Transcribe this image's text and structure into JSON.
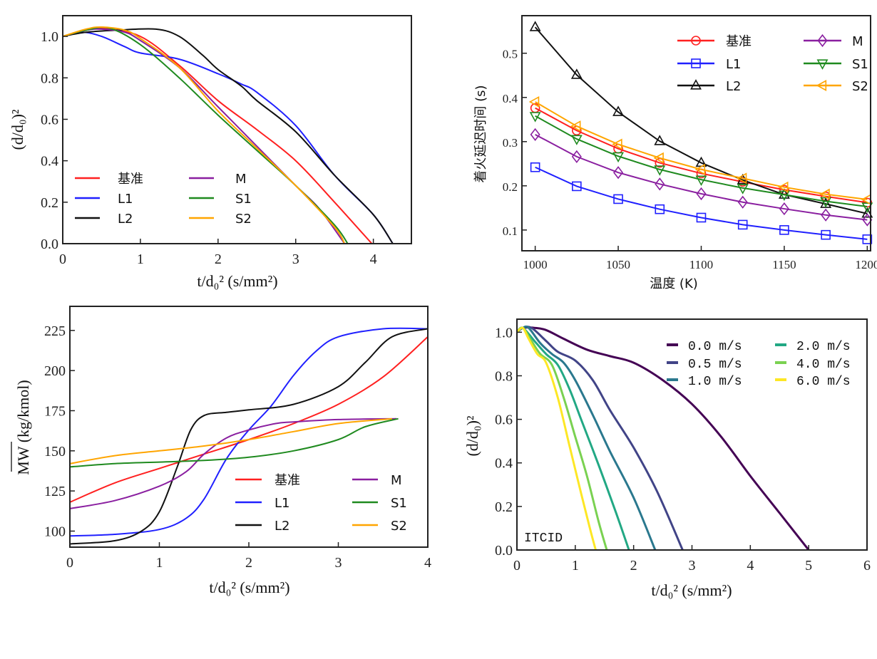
{
  "chart_data": [
    {
      "type": "line",
      "title": "",
      "xlabel": "t/d₀² (s/mm²)",
      "ylabel": "(d/d₀)²",
      "xlim": [
        0,
        4.49
      ],
      "ylim": [
        0,
        1.1
      ],
      "xticks": [
        "0",
        "1",
        "2",
        "3",
        "4"
      ],
      "xtick_values": [
        0,
        1,
        2,
        3,
        4
      ],
      "yticks": [
        "0.0",
        "0.2",
        "0.4",
        "0.6",
        "0.8",
        "1.0"
      ],
      "ytick_values": [
        0,
        0.2,
        0.4,
        0.6,
        0.8,
        1.0
      ],
      "grid": false,
      "legend_placement": "lower-left",
      "series": [
        {
          "name": "基准",
          "color": "#ff2020",
          "x": [
            0,
            0.3,
            0.5,
            1,
            1.5,
            2,
            2.5,
            3,
            3.5,
            3.98
          ],
          "y": [
            1,
            1.03,
            1.04,
            1.0,
            0.86,
            0.69,
            0.55,
            0.4,
            0.2,
            0
          ]
        },
        {
          "name": "L1",
          "color": "#2020ff",
          "x": [
            0,
            0.25,
            0.5,
            0.8,
            1,
            1.5,
            2,
            2.3,
            2.5,
            3,
            3.5,
            4,
            4.25
          ],
          "y": [
            1,
            1.02,
            1.0,
            0.95,
            0.92,
            0.89,
            0.82,
            0.77,
            0.73,
            0.57,
            0.33,
            0.14,
            0
          ]
        },
        {
          "name": "L2",
          "color": "#111111",
          "x": [
            0,
            0.3,
            0.7,
            1.2,
            1.5,
            1.8,
            2,
            2.3,
            2.5,
            3,
            3.5,
            4,
            4.25
          ],
          "y": [
            1,
            1.02,
            1.03,
            1.035,
            1.0,
            0.91,
            0.84,
            0.76,
            0.69,
            0.54,
            0.33,
            0.14,
            0
          ]
        },
        {
          "name": "M",
          "color": "#8a1fa0",
          "x": [
            0,
            0.3,
            0.5,
            0.8,
            1,
            1.5,
            2,
            2.5,
            3,
            3.3,
            3.63
          ],
          "y": [
            1,
            1.03,
            1.035,
            1.02,
            0.98,
            0.85,
            0.66,
            0.47,
            0.28,
            0.17,
            0
          ]
        },
        {
          "name": "S1",
          "color": "#1f8a1f",
          "x": [
            0,
            0.3,
            0.6,
            1,
            1.5,
            2,
            2.5,
            3,
            3.5,
            3.67
          ],
          "y": [
            1,
            1.03,
            1.04,
            0.96,
            0.8,
            0.62,
            0.45,
            0.28,
            0.09,
            0
          ]
        },
        {
          "name": "S2",
          "color": "#ffa500",
          "x": [
            0,
            0.3,
            0.5,
            0.8,
            1,
            1.5,
            2,
            2.5,
            3,
            3.5,
            3.63
          ],
          "y": [
            1,
            1.035,
            1.045,
            1.03,
            0.99,
            0.85,
            0.64,
            0.46,
            0.28,
            0.08,
            0
          ]
        }
      ]
    },
    {
      "type": "line",
      "title": "",
      "xlabel": "温度 (K)",
      "ylabel": "着火延迟时间 (s)",
      "xlim": [
        992,
        1202
      ],
      "ylim": [
        0.053,
        0.585
      ],
      "xticks": [
        "1000",
        "1050",
        "1100",
        "1150",
        "1200"
      ],
      "xtick_values": [
        1000,
        1050,
        1100,
        1150,
        1200
      ],
      "yticks": [
        "0.1",
        "0.2",
        "0.3",
        "0.4",
        "0.5"
      ],
      "ytick_values": [
        0.1,
        0.2,
        0.3,
        0.4,
        0.5
      ],
      "grid": false,
      "legend_placement": "upper-right",
      "x": [
        1000,
        1025,
        1050,
        1075,
        1100,
        1125,
        1150,
        1175,
        1200
      ],
      "series": [
        {
          "name": "基准",
          "color": "#ff2020",
          "marker": "circle",
          "y": [
            0.376,
            0.325,
            0.284,
            0.252,
            0.228,
            0.209,
            0.191,
            0.176,
            0.162
          ]
        },
        {
          "name": "L1",
          "color": "#2020ff",
          "marker": "square",
          "y": [
            0.242,
            0.199,
            0.17,
            0.147,
            0.128,
            0.112,
            0.1,
            0.089,
            0.079
          ]
        },
        {
          "name": "L2",
          "color": "#111111",
          "marker": "triangle-up",
          "y": [
            0.559,
            0.451,
            0.367,
            0.301,
            0.252,
            0.213,
            0.18,
            0.159,
            0.137
          ]
        },
        {
          "name": "M",
          "color": "#8a1fa0",
          "marker": "diamond",
          "y": [
            0.316,
            0.266,
            0.23,
            0.204,
            0.182,
            0.163,
            0.148,
            0.134,
            0.123
          ]
        },
        {
          "name": "S1",
          "color": "#1f8a1f",
          "marker": "triangle-down",
          "y": [
            0.358,
            0.306,
            0.267,
            0.237,
            0.214,
            0.195,
            0.18,
            0.165,
            0.153
          ]
        },
        {
          "name": "S2",
          "color": "#ffa500",
          "marker": "triangle-left",
          "y": [
            0.39,
            0.335,
            0.294,
            0.263,
            0.237,
            0.217,
            0.197,
            0.181,
            0.169
          ]
        }
      ]
    },
    {
      "type": "line",
      "title": "",
      "xlabel": "t/d₀² (s/mm²)",
      "ylabel": "MW (kg/kmol)",
      "xlim": [
        0,
        4
      ],
      "ylim": [
        90,
        240
      ],
      "xticks": [
        "0",
        "1",
        "2",
        "3",
        "4"
      ],
      "xtick_values": [
        0,
        1,
        2,
        3,
        4
      ],
      "yticks": [
        "100",
        "125",
        "150",
        "175",
        "200",
        "225"
      ],
      "ytick_values": [
        100,
        125,
        150,
        175,
        200,
        225
      ],
      "grid": false,
      "legend_placement": "lower-right",
      "series": [
        {
          "name": "基准",
          "color": "#ff2020",
          "x": [
            0,
            0.5,
            1,
            1.5,
            2,
            2.5,
            3,
            3.5,
            4
          ],
          "y": [
            118,
            130,
            139,
            148,
            157,
            167,
            179,
            196,
            221
          ]
        },
        {
          "name": "L1",
          "color": "#2020ff",
          "x": [
            0,
            0.5,
            1,
            1.3,
            1.5,
            1.75,
            2,
            2.25,
            2.5,
            2.75,
            3,
            3.5,
            4
          ],
          "y": [
            97,
            98,
            101,
            108,
            120,
            145,
            163,
            178,
            197,
            212,
            221,
            226,
            226
          ]
        },
        {
          "name": "L2",
          "color": "#111111",
          "x": [
            0,
            0.5,
            0.8,
            1,
            1.2,
            1.35,
            1.5,
            1.75,
            2,
            2.5,
            3,
            3.3,
            3.6,
            4
          ],
          "y": [
            92,
            94,
            100,
            112,
            140,
            163,
            172,
            174,
            175.5,
            179,
            190,
            205,
            221,
            226
          ]
        },
        {
          "name": "M",
          "color": "#8a1fa0",
          "x": [
            0,
            0.5,
            1,
            1.3,
            1.5,
            1.75,
            2,
            2.3,
            2.5,
            3,
            3.65
          ],
          "y": [
            114,
            119,
            128,
            137,
            148,
            158,
            163,
            167,
            168,
            169.5,
            170
          ]
        },
        {
          "name": "S1",
          "color": "#1f8a1f",
          "x": [
            0,
            0.5,
            1,
            1.5,
            2,
            2.5,
            3,
            3.3,
            3.67
          ],
          "y": [
            140,
            142,
            143,
            144,
            146,
            150,
            157,
            165,
            170
          ]
        },
        {
          "name": "S2",
          "color": "#ffa500",
          "x": [
            0,
            0.5,
            1,
            1.5,
            2,
            2.5,
            3,
            3.6
          ],
          "y": [
            142,
            147,
            150,
            153,
            157,
            162,
            167,
            170
          ]
        }
      ]
    },
    {
      "type": "line",
      "title": "",
      "xlabel": "t/d₀² (s/mm²)",
      "ylabel": "(d/d₀)²",
      "annotation": "ITCID",
      "xlim": [
        0,
        6
      ],
      "ylim": [
        0,
        1.06
      ],
      "xticks": [
        "0",
        "1",
        "2",
        "3",
        "4",
        "5",
        "6"
      ],
      "xtick_values": [
        0,
        1,
        2,
        3,
        4,
        5,
        6
      ],
      "yticks": [
        "0.0",
        "0.2",
        "0.4",
        "0.6",
        "0.8",
        "1.0"
      ],
      "ytick_values": [
        0,
        0.2,
        0.4,
        0.6,
        0.8,
        1.0
      ],
      "grid": false,
      "legend_placement": "upper-right",
      "series": [
        {
          "name": "0.0 m/s",
          "color": "#440154",
          "x": [
            0,
            0.1,
            0.3,
            0.5,
            0.8,
            1.2,
            1.6,
            2,
            2.5,
            3,
            3.5,
            4,
            4.5,
            5
          ],
          "y": [
            1,
            1.02,
            1.02,
            1.01,
            0.97,
            0.92,
            0.89,
            0.86,
            0.78,
            0.67,
            0.52,
            0.34,
            0.17,
            0
          ]
        },
        {
          "name": "0.5 m/s",
          "color": "#414487",
          "x": [
            0,
            0.1,
            0.25,
            0.5,
            0.7,
            1,
            1.3,
            1.6,
            2,
            2.4,
            2.84
          ],
          "y": [
            1,
            1.02,
            1.02,
            0.96,
            0.91,
            0.87,
            0.78,
            0.64,
            0.47,
            0.27,
            0
          ]
        },
        {
          "name": "1.0 m/s",
          "color": "#2a788e",
          "x": [
            0,
            0.1,
            0.2,
            0.4,
            0.6,
            0.8,
            1,
            1.3,
            1.6,
            2,
            2.37
          ],
          "y": [
            1,
            1.02,
            1.02,
            0.95,
            0.9,
            0.86,
            0.78,
            0.62,
            0.45,
            0.24,
            0
          ]
        },
        {
          "name": "2.0 m/s",
          "color": "#22a884",
          "x": [
            0,
            0.1,
            0.3,
            0.5,
            0.7,
            0.9,
            1.1,
            1.4,
            1.7,
            1.92
          ],
          "y": [
            1,
            1.02,
            0.96,
            0.9,
            0.85,
            0.74,
            0.6,
            0.39,
            0.17,
            0
          ]
        },
        {
          "name": "4.0 m/s",
          "color": "#7ad151",
          "x": [
            0,
            0.1,
            0.25,
            0.4,
            0.6,
            0.8,
            1,
            1.2,
            1.4,
            1.54
          ],
          "y": [
            1,
            1.02,
            0.96,
            0.9,
            0.85,
            0.7,
            0.52,
            0.34,
            0.13,
            0
          ]
        },
        {
          "name": "6.0 m/s",
          "color": "#fde725",
          "x": [
            0,
            0.1,
            0.2,
            0.35,
            0.5,
            0.7,
            0.9,
            1.1,
            1.25,
            1.35
          ],
          "y": [
            1,
            1.02,
            0.97,
            0.9,
            0.86,
            0.7,
            0.48,
            0.26,
            0.1,
            0
          ]
        }
      ]
    }
  ]
}
